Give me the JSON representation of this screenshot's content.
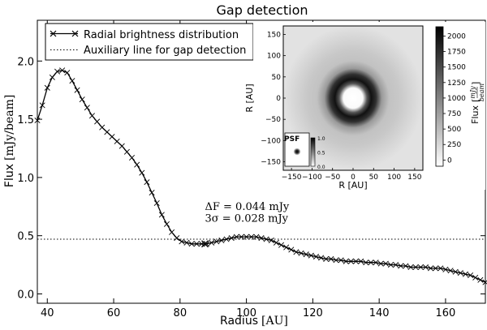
{
  "chart_data": [
    {
      "type": "line",
      "title": "Gap detection",
      "xlabel": "Radius",
      "xlabel_unit": "[AU]",
      "ylabel": "Flux",
      "ylabel_unit": "[mJy/beam]",
      "xlim": [
        37,
        172
      ],
      "ylim": [
        -0.08,
        2.35
      ],
      "x_ticks": [
        40,
        60,
        80,
        100,
        120,
        140,
        160
      ],
      "y_ticks": [
        0.0,
        0.5,
        1.0,
        1.5,
        2.0
      ],
      "x_tick_labels": [
        "40",
        "60",
        "80",
        "100",
        "120",
        "140",
        "160"
      ],
      "y_tick_labels": [
        "0.0",
        "0.5",
        "1.0",
        "1.5",
        "2.0"
      ],
      "grid": false,
      "legend": "top-left",
      "series": [
        {
          "name": "Radial brightness distribution",
          "style": "solid line with x markers",
          "color": "#000000",
          "x": [
            37,
            38.5,
            40,
            41.5,
            43,
            44.5,
            46,
            47.5,
            49,
            50.5,
            52,
            53.5,
            55,
            56.5,
            58,
            59.5,
            61,
            62.5,
            64,
            65.5,
            67,
            68.5,
            70,
            71.5,
            73,
            74.5,
            76,
            77.5,
            79,
            80.5,
            82,
            83.5,
            85,
            86.5,
            88,
            89.5,
            91,
            92.5,
            94,
            95.5,
            97,
            98.5,
            100,
            101.5,
            103,
            104.5,
            106,
            107.5,
            109,
            110.5,
            112,
            113.5,
            115,
            116.5,
            118,
            119.5,
            121,
            122.5,
            124,
            125.5,
            127,
            128.5,
            130,
            131.5,
            133,
            134.5,
            136,
            137.5,
            139,
            140.5,
            142,
            143.5,
            145,
            146.5,
            148,
            149.5,
            151,
            152.5,
            154,
            155.5,
            157,
            158.5,
            160,
            161.5,
            163,
            164.5,
            166,
            167.5,
            169,
            170.5,
            172
          ],
          "y": [
            1.49,
            1.62,
            1.77,
            1.86,
            1.91,
            1.92,
            1.9,
            1.83,
            1.75,
            1.67,
            1.6,
            1.53,
            1.48,
            1.43,
            1.39,
            1.35,
            1.31,
            1.27,
            1.22,
            1.17,
            1.11,
            1.04,
            0.96,
            0.87,
            0.78,
            0.68,
            0.6,
            0.53,
            0.48,
            0.45,
            0.44,
            0.43,
            0.43,
            0.43,
            0.43,
            0.44,
            0.45,
            0.46,
            0.47,
            0.48,
            0.49,
            0.49,
            0.49,
            0.49,
            0.49,
            0.48,
            0.47,
            0.46,
            0.44,
            0.42,
            0.4,
            0.38,
            0.36,
            0.35,
            0.34,
            0.33,
            0.32,
            0.31,
            0.3,
            0.3,
            0.29,
            0.29,
            0.28,
            0.28,
            0.28,
            0.28,
            0.27,
            0.27,
            0.27,
            0.26,
            0.26,
            0.25,
            0.25,
            0.24,
            0.24,
            0.23,
            0.23,
            0.23,
            0.23,
            0.22,
            0.22,
            0.22,
            0.21,
            0.2,
            0.19,
            0.18,
            0.17,
            0.16,
            0.14,
            0.12,
            0.1
          ]
        },
        {
          "name": "Auxiliary line for gap detection",
          "style": "dotted horizontal line",
          "color": "#000000",
          "y_constant": 0.47
        }
      ],
      "annotations": [
        {
          "text": "ΔF = 0.044 mJy",
          "at": [
            87.5,
            0.72
          ]
        },
        {
          "text": "3σ = 0.028 mJy",
          "at": [
            87.5,
            0.62
          ]
        }
      ],
      "gap_marker": {
        "x": 87.5,
        "y": 0.43,
        "marker": "x"
      }
    },
    {
      "type": "heatmap",
      "description_role": "inset image",
      "xlabel": "R [AU]",
      "ylabel": "R [AU]",
      "xlim": [
        -170,
        170
      ],
      "ylim": [
        -170,
        170
      ],
      "x_tick_labels": [
        "−150",
        "−100",
        "−50",
        "0",
        "50",
        "100",
        "150"
      ],
      "y_tick_labels": [
        "150",
        "100",
        "50",
        "0",
        "−50",
        "−100",
        "−150"
      ],
      "colorbar": {
        "label": "Flux [mJy/beam]",
        "label_prefix": "Flux",
        "label_num": "mJy",
        "label_den": "beam",
        "ticks": [
          "2000",
          "1750",
          "1500",
          "1250",
          "1000",
          "750",
          "500",
          "250",
          "0"
        ],
        "range": [
          -100,
          2150
        ],
        "colormap": "grayscale reversed (white low, black high)"
      },
      "psf_inset": {
        "label": "PSF",
        "colorbar_ticks": [
          "1.0",
          "0.5",
          "0.0"
        ]
      }
    }
  ]
}
